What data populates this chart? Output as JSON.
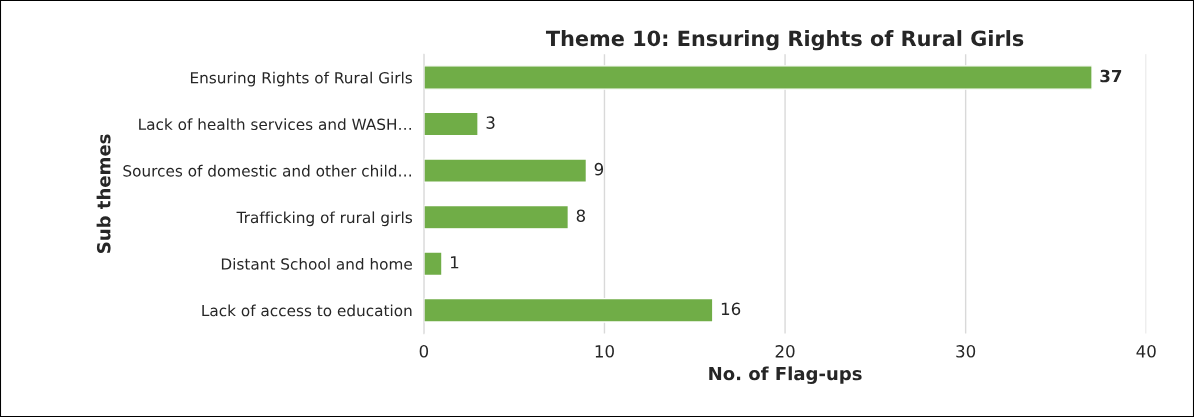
{
  "chart_data": {
    "type": "bar",
    "orientation": "horizontal",
    "title": "Theme 10: Ensuring Rights of Rural Girls",
    "xlabel": "No. of Flag-ups",
    "ylabel": "Sub themes",
    "categories": [
      "Ensuring Rights of Rural Girls",
      "Lack of health services and WASH…",
      "Sources of domestic and other child…",
      "Trafficking of rural girls",
      "Distant School and home",
      "Lack of access to education"
    ],
    "values": [
      37,
      3,
      9,
      8,
      1,
      16
    ],
    "color": "#70ad47",
    "xlim": [
      0,
      40
    ],
    "xticks": [
      0,
      10,
      20,
      30,
      40
    ],
    "grid": "x",
    "data_labels": true
  }
}
